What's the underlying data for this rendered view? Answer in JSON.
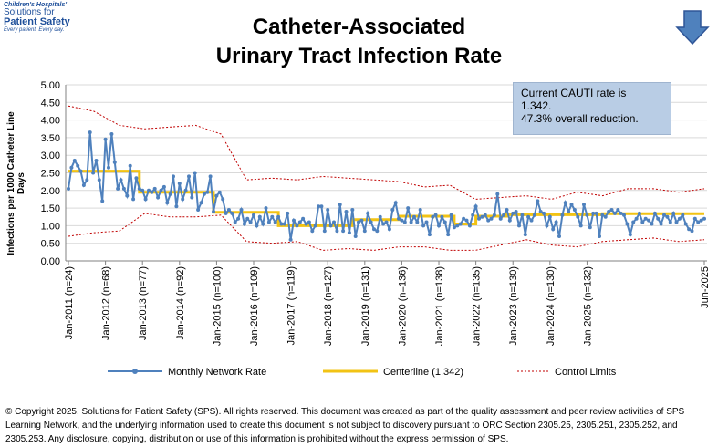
{
  "logo": {
    "line1": "Children's Hospitals'",
    "line2": "Solutions for",
    "line3": "Patient Safety",
    "tagline": "Every patient. Every day."
  },
  "title_line1": "Catheter-Associated",
  "title_line2": "Urinary Tract Infection Rate",
  "callout": {
    "line1": "Current  CAUTI  rate is",
    "line2": "1.342.",
    "line3": "47.3% overall  reduction."
  },
  "ylabel": "Infections per 1000 Catheter Line Days",
  "legend": {
    "monthly": "Monthly Network Rate",
    "centerline": "Centerline (1.342)",
    "limits": "Control Limits"
  },
  "footer": "© Copyright 2025, Solutions for Patient Safety (SPS).  All rights reserved.  This document was created as part of the quality assessment and peer review activities of SPS Learning Network, and the underlying information used to create this document is not subject to discovery pursuant to ORC Section 2305.25, 2305.251, 2305.252, and 2305.253. Any disclosure, copying, distribution or use of this information is prohibited without the express permission of SPS.",
  "colors": {
    "monthly": "#4f81bd",
    "centerline": "#f2c314",
    "limits": "#c00000",
    "callout_bg": "#b9cde5",
    "arrow": "#4f81bd"
  },
  "chart_data": {
    "type": "line",
    "title": "Catheter-Associated Urinary Tract Infection Rate",
    "ylabel": "Infections per 1000 Catheter Line Days",
    "ylim": [
      0,
      5
    ],
    "yticks": [
      "0.00",
      "0.50",
      "1.00",
      "1.50",
      "2.00",
      "2.50",
      "3.00",
      "3.50",
      "4.00",
      "4.50",
      "5.00"
    ],
    "grid": true,
    "xtick_labels": [
      "Jan-2011 (n=24)",
      "Jan-2012 (n=68)",
      "Jan-2013 (n=77)",
      "Jan-2014 (n=92)",
      "Jan-2015 (n=100)",
      "Jan-2016 (n=109)",
      "Jan-2017 (n=119)",
      "Jan-2018 (n=127)",
      "Jan-2019 (n=131)",
      "Jan-2020 (n=136)",
      "Jan-2021 (n=138)",
      "Jan-2022 (n=135)",
      "Jan-2023 (n=130)",
      "Jan-2024 (n=130)",
      "Jan-2025 (n=132)",
      "Jun-2025"
    ],
    "series": [
      {
        "name": "Monthly Network Rate",
        "values": [
          2.05,
          2.65,
          2.85,
          2.7,
          2.55,
          2.15,
          2.3,
          3.65,
          2.5,
          2.85,
          2.3,
          1.7,
          3.45,
          2.65,
          3.6,
          2.8,
          2.05,
          2.3,
          2.05,
          1.85,
          2.7,
          1.75,
          2.35,
          2.05,
          2.0,
          1.75,
          2.0,
          1.95,
          2.05,
          1.8,
          2.0,
          2.1,
          1.65,
          1.9,
          2.4,
          1.55,
          2.2,
          1.75,
          2.0,
          2.4,
          1.8,
          2.5,
          1.45,
          1.65,
          1.9,
          1.95,
          2.4,
          1.4,
          1.85,
          1.95,
          1.75,
          1.35,
          1.45,
          1.35,
          1.1,
          1.2,
          1.45,
          1.05,
          1.2,
          1.1,
          1.3,
          1.0,
          1.25,
          1.05,
          1.5,
          1.1,
          1.25,
          1.1,
          1.25,
          1.05,
          1.05,
          1.35,
          0.6,
          1.15,
          1.0,
          1.1,
          1.2,
          1.05,
          1.1,
          0.85,
          1.0,
          1.55,
          1.55,
          0.85,
          1.45,
          1.0,
          1.1,
          0.85,
          1.6,
          0.85,
          1.4,
          0.8,
          1.45,
          0.7,
          1.1,
          1.15,
          0.85,
          1.35,
          1.1,
          0.9,
          0.85,
          1.25,
          1.05,
          1.1,
          0.9,
          1.45,
          1.65,
          1.2,
          1.15,
          1.1,
          1.5,
          1.1,
          1.25,
          1.1,
          1.45,
          1.0,
          1.1,
          0.75,
          1.25,
          1.3,
          1.0,
          1.25,
          1.1,
          0.75,
          1.3,
          0.95,
          1.0,
          1.05,
          1.2,
          1.15,
          1.0,
          1.3,
          1.55,
          1.2,
          1.25,
          1.3,
          1.15,
          1.2,
          1.3,
          1.9,
          1.2,
          1.3,
          1.45,
          1.15,
          1.35,
          1.4,
          1.0,
          1.3,
          0.75,
          1.25,
          1.15,
          1.3,
          1.7,
          1.4,
          1.35,
          1.0,
          1.25,
          0.9,
          1.1,
          0.7,
          1.3,
          1.65,
          1.4,
          1.6,
          1.45,
          1.25,
          1.0,
          1.6,
          1.3,
          0.95,
          1.35,
          1.35,
          0.7,
          1.3,
          1.25,
          1.4,
          1.45,
          1.35,
          1.45,
          1.35,
          1.3,
          1.05,
          0.75,
          1.1,
          1.2,
          1.35,
          1.1,
          1.2,
          1.15,
          1.05,
          1.35,
          1.2,
          1.05,
          1.3,
          1.25,
          1.1,
          1.35,
          1.1,
          1.2,
          1.3,
          1.05,
          0.9,
          0.85,
          1.2,
          1.1,
          1.15,
          1.2
        ]
      },
      {
        "name": "Centerline (1.342)",
        "segments": [
          {
            "from": 0,
            "to": 23,
            "value": 2.55
          },
          {
            "from": 23,
            "to": 47,
            "value": 1.95
          },
          {
            "from": 47,
            "to": 68,
            "value": 1.38
          },
          {
            "from": 68,
            "to": 92,
            "value": 1.0
          },
          {
            "from": 92,
            "to": 107,
            "value": 1.17
          },
          {
            "from": 107,
            "to": 125,
            "value": 1.27
          },
          {
            "from": 125,
            "to": 132,
            "value": 1.05
          },
          {
            "from": 132,
            "to": 142,
            "value": 1.27
          },
          {
            "from": 142,
            "to": 173,
            "value": 1.31
          },
          {
            "from": 173,
            "to": 208,
            "value": 1.342
          }
        ]
      },
      {
        "name": "Control Limits",
        "upper": [
          4.4,
          4.25,
          3.85,
          3.75,
          3.8,
          3.85,
          3.6,
          2.3,
          2.35,
          2.3,
          2.4,
          2.35,
          2.3,
          2.25,
          2.1,
          2.15,
          1.75,
          1.8,
          1.85,
          1.75,
          1.95,
          1.85,
          2.05,
          2.05,
          1.95,
          2.05
        ],
        "lower": [
          0.7,
          0.8,
          0.85,
          1.35,
          1.25,
          1.25,
          1.3,
          0.55,
          0.5,
          0.55,
          0.3,
          0.35,
          0.3,
          0.4,
          0.4,
          0.3,
          0.3,
          0.45,
          0.6,
          0.45,
          0.4,
          0.55,
          0.6,
          0.65,
          0.55,
          0.6
        ]
      }
    ]
  }
}
